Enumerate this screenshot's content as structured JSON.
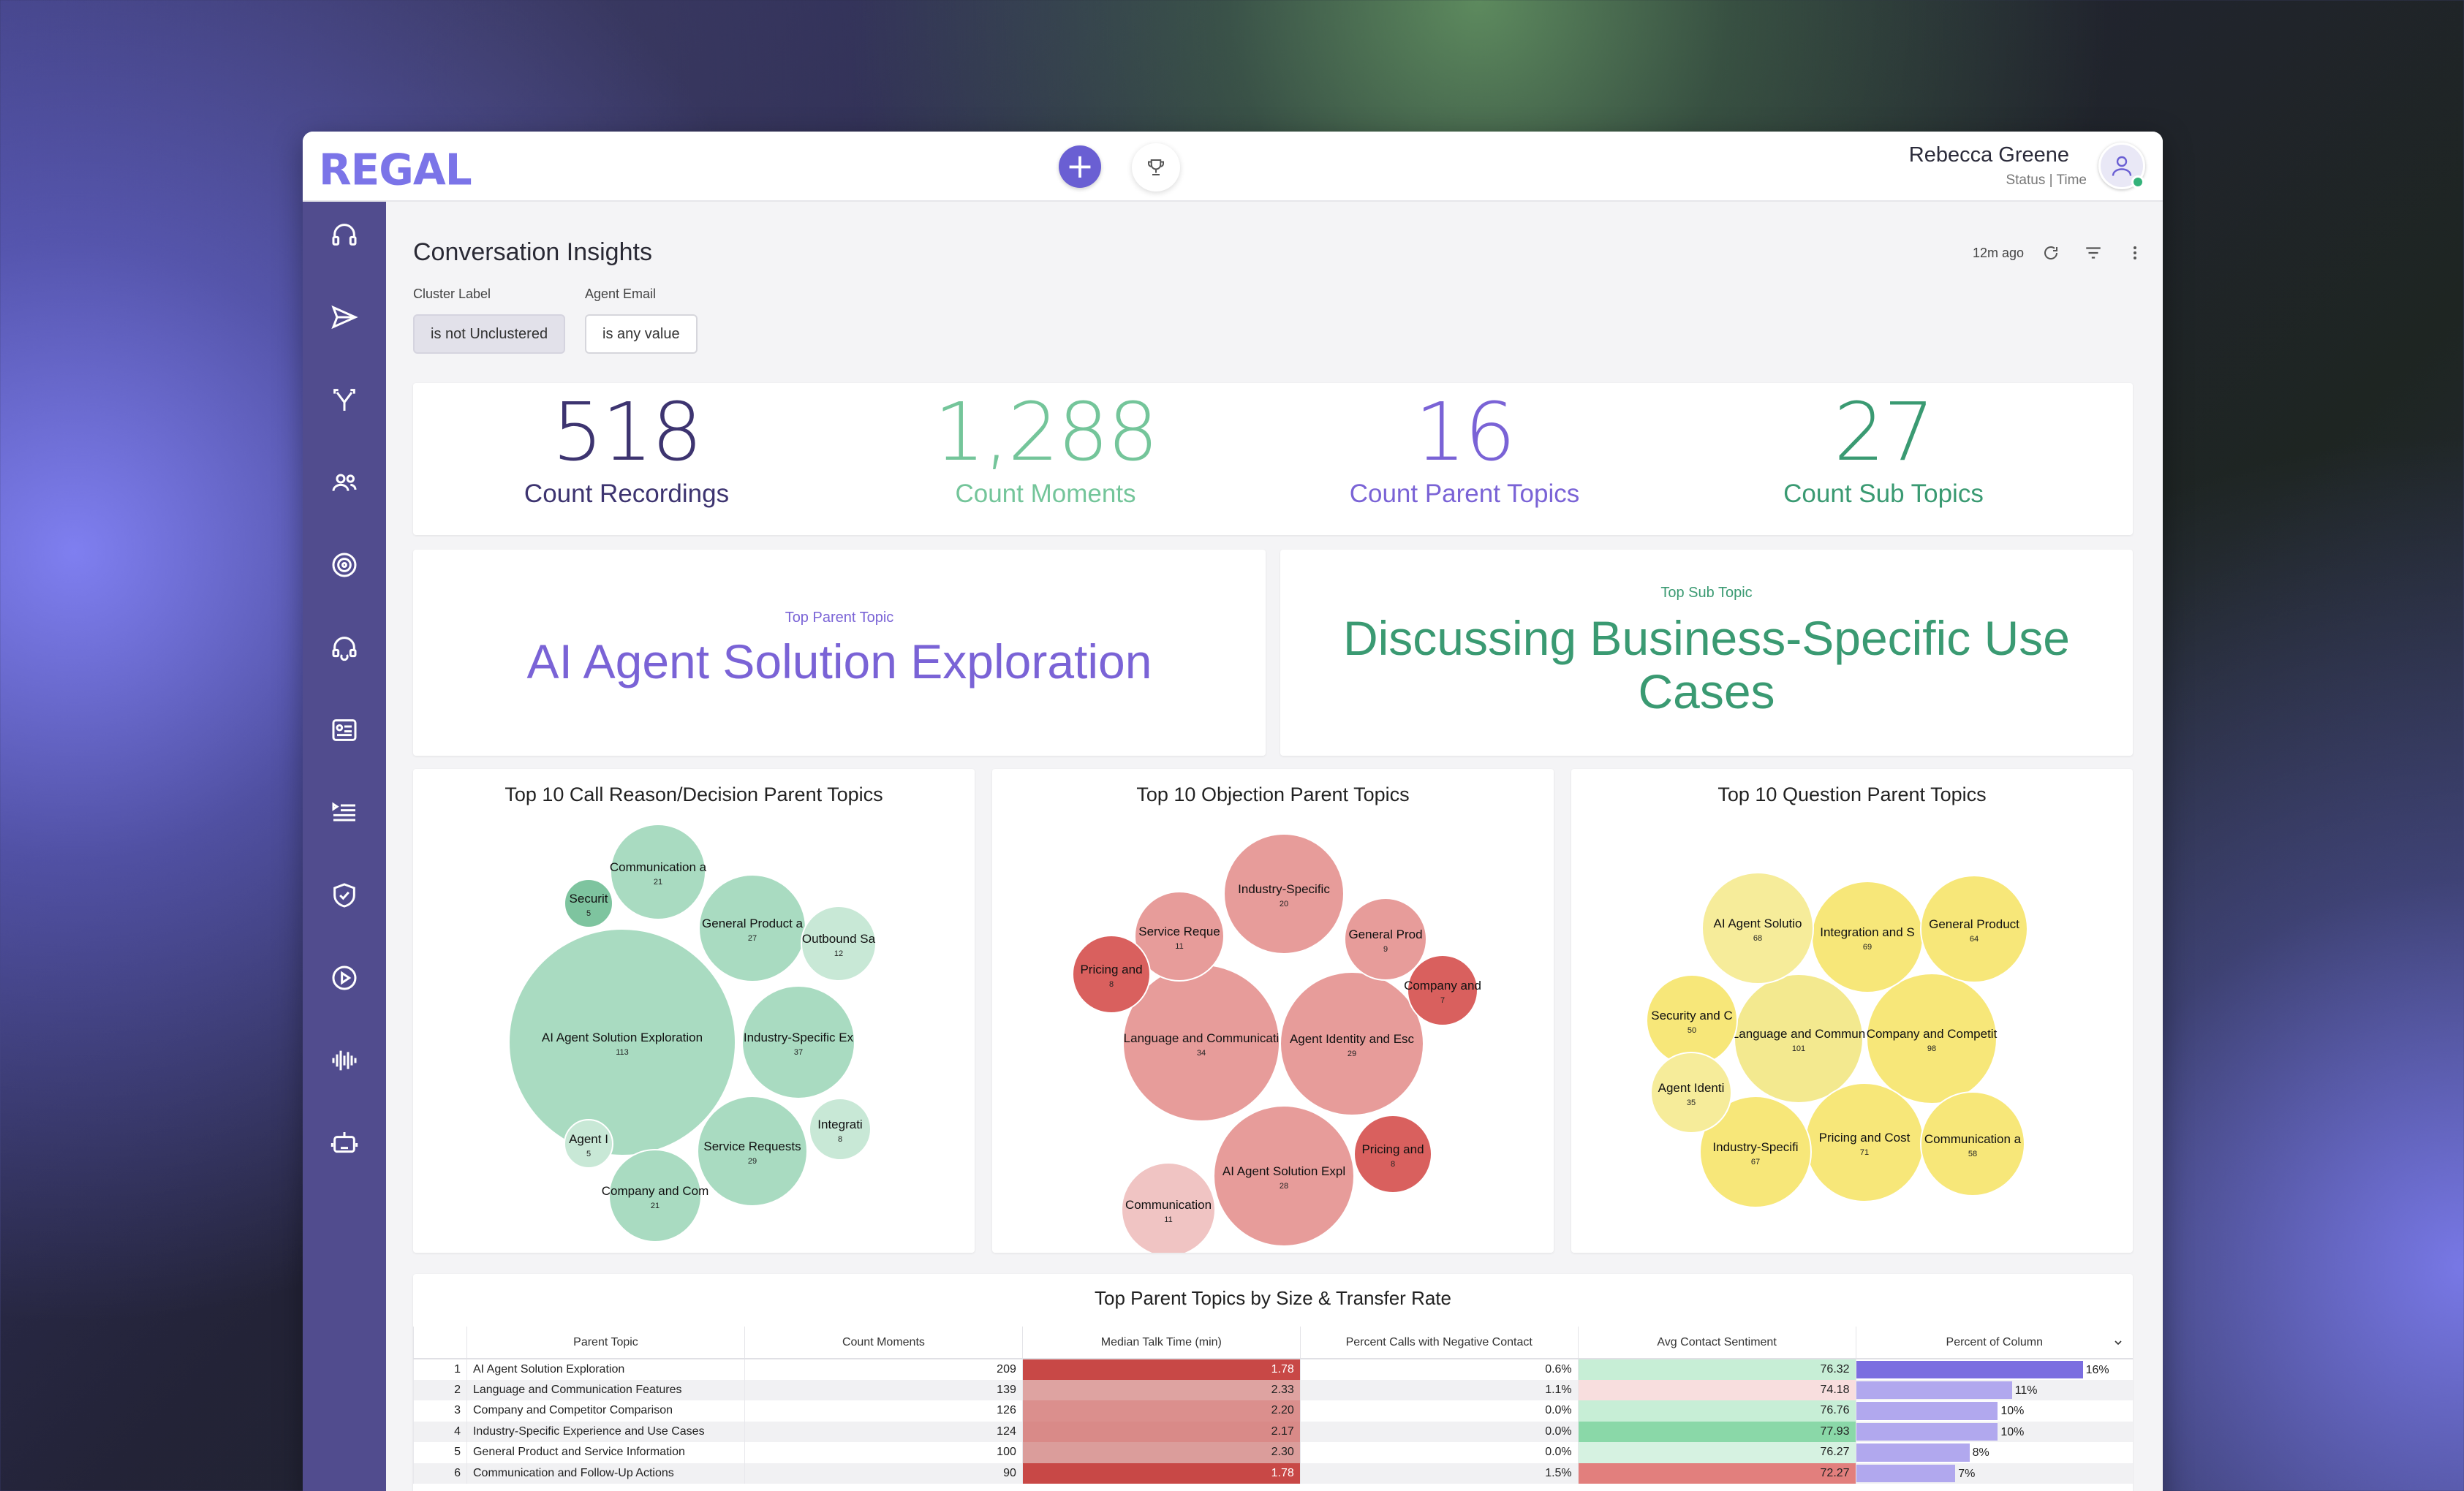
{
  "app": {
    "logo": "REGAL",
    "user": {
      "name": "Rebecca Greene",
      "status": "Status | Time"
    }
  },
  "page": {
    "title": "Conversation Insights",
    "refreshed": "12m ago",
    "filters": [
      {
        "label": "Cluster Label",
        "value": "is not Unclustered"
      },
      {
        "label": "Agent Email",
        "value": "is any value"
      }
    ]
  },
  "kpis": [
    {
      "value": "518",
      "label": "Count Recordings",
      "color": "#3d3470"
    },
    {
      "value": "1,288",
      "label": "Count Moments",
      "color": "#74c59a"
    },
    {
      "value": "16",
      "label": "Count Parent Topics",
      "color": "#7a63d6"
    },
    {
      "value": "27",
      "label": "Count Sub Topics",
      "color": "#3a9a72"
    }
  ],
  "top_topics": {
    "parent": {
      "caption": "Top Parent Topic",
      "value": "AI Agent Solution Exploration",
      "color": "#7a63d6"
    },
    "sub": {
      "caption": "Top Sub Topic",
      "value": "Discussing Business-Specific Use Cases",
      "color": "#3a9a72"
    }
  },
  "chart_data": [
    {
      "type": "bubble",
      "title": "Top 10 Call Reason/Decision Parent Topics",
      "colors": {
        "fill": "#a9dbc1",
        "stroke": "#ffffff"
      },
      "series": [
        {
          "label": "AI Agent Solution Exploration",
          "value": 113
        },
        {
          "label": "Industry-Specific Ex",
          "value": 37
        },
        {
          "label": "Service Requests",
          "value": 29
        },
        {
          "label": "General Product a",
          "value": 27
        },
        {
          "label": "Communication a",
          "value": 21
        },
        {
          "label": "Company and Com",
          "value": 21
        },
        {
          "label": "Outbound Sa",
          "value": 12
        },
        {
          "label": "Integrati",
          "value": 8
        },
        {
          "label": "Securit",
          "value": 5
        },
        {
          "label": "Agent I",
          "value": 5
        }
      ]
    },
    {
      "type": "bubble",
      "title": "Top 10 Objection Parent Topics",
      "colors": {
        "fill": "#e79c9a",
        "stroke": "#ffffff"
      },
      "series": [
        {
          "label": "Language and Communicati",
          "value": 34
        },
        {
          "label": "Agent Identity and Esc",
          "value": 29
        },
        {
          "label": "AI Agent Solution Expl",
          "value": 28
        },
        {
          "label": "Industry-Specific",
          "value": 20
        },
        {
          "label": "Service Reque",
          "value": 11
        },
        {
          "label": "Communication",
          "value": 11
        },
        {
          "label": "General Prod",
          "value": 9
        },
        {
          "label": "Pricing and",
          "value": 8
        },
        {
          "label": "Company and",
          "value": 7
        },
        {
          "label": "Pricing and",
          "value": 8
        }
      ]
    },
    {
      "type": "bubble",
      "title": "Top 10 Question Parent Topics",
      "colors": {
        "fill": "#f7e779",
        "stroke": "#ffffff"
      },
      "series": [
        {
          "label": "Language and Commun",
          "value": 101
        },
        {
          "label": "Company and Competit",
          "value": 98
        },
        {
          "label": "Pricing and Cost",
          "value": 71
        },
        {
          "label": "Integration and S",
          "value": 69
        },
        {
          "label": "AI Agent Solutio",
          "value": 68
        },
        {
          "label": "Industry-Specifi",
          "value": 67
        },
        {
          "label": "General Product",
          "value": 64
        },
        {
          "label": "Communication a",
          "value": 58
        },
        {
          "label": "Security and C",
          "value": 50
        },
        {
          "label": "Agent Identi",
          "value": 35
        }
      ]
    },
    {
      "type": "table",
      "title": "Top Parent Topics by Size & Transfer Rate",
      "columns": [
        "Parent Topic",
        "Count Moments",
        "Median Talk Time (min)",
        "Percent Calls with Negative Contact",
        "Avg Contact Sentiment",
        "Percent of Column"
      ],
      "rows": [
        {
          "idx": "1",
          "topic": "AI Agent Solution Exploration",
          "count": "209",
          "talk": "1.78",
          "neg": "0.6%",
          "sent": "76.32",
          "pct": "16%",
          "pct_value": 16
        },
        {
          "idx": "2",
          "topic": "Language and Communication Features",
          "count": "139",
          "talk": "2.33",
          "neg": "1.1%",
          "sent": "74.18",
          "pct": "11%",
          "pct_value": 11
        },
        {
          "idx": "3",
          "topic": "Company and Competitor Comparison",
          "count": "126",
          "talk": "2.20",
          "neg": "0.0%",
          "sent": "76.76",
          "pct": "10%",
          "pct_value": 10
        },
        {
          "idx": "4",
          "topic": "Industry-Specific Experience and Use Cases",
          "count": "124",
          "talk": "2.17",
          "neg": "0.0%",
          "sent": "77.93",
          "pct": "10%",
          "pct_value": 10
        },
        {
          "idx": "5",
          "topic": "General Product and Service Information",
          "count": "100",
          "talk": "2.30",
          "neg": "0.0%",
          "sent": "76.27",
          "pct": "8%",
          "pct_value": 8
        },
        {
          "idx": "6",
          "topic": "Communication and Follow-Up Actions",
          "count": "90",
          "talk": "1.78",
          "neg": "1.5%",
          "sent": "72.27",
          "pct": "7%",
          "pct_value": 7
        }
      ]
    }
  ]
}
